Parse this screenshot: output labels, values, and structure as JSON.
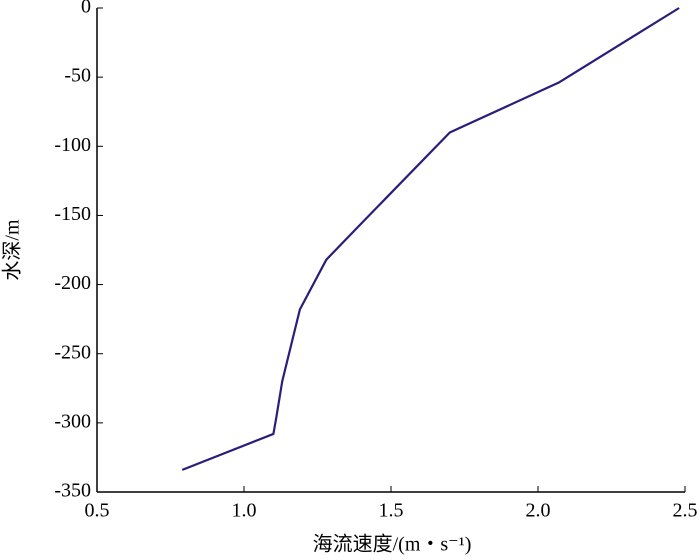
{
  "chart_data": {
    "type": "line",
    "x_label": "海流速度/(m・s⁻¹)",
    "y_label": "水深/m",
    "x": [
      0.79,
      1.1,
      1.11,
      1.13,
      1.19,
      1.28,
      1.38,
      1.7,
      2.07,
      2.48
    ],
    "series": [
      {
        "color": "#2b1d7a",
        "values": [
          -334,
          -308,
          -296,
          -270,
          -218,
          -182,
          -160,
          -90,
          -54,
          0
        ]
      }
    ],
    "xlim": [
      0.5,
      2.5
    ],
    "xticks": [
      {
        "value": 0.5,
        "label": "0.5"
      },
      {
        "value": 1.0,
        "label": "1.0"
      },
      {
        "value": 1.5,
        "label": "1.5"
      },
      {
        "value": 2.0,
        "label": "2.0"
      },
      {
        "value": 2.5,
        "label": "2.5"
      }
    ],
    "ylim": [
      -350,
      0
    ],
    "yticks": [
      0,
      -50,
      -100,
      -150,
      -200,
      -250,
      -300,
      -350
    ]
  }
}
